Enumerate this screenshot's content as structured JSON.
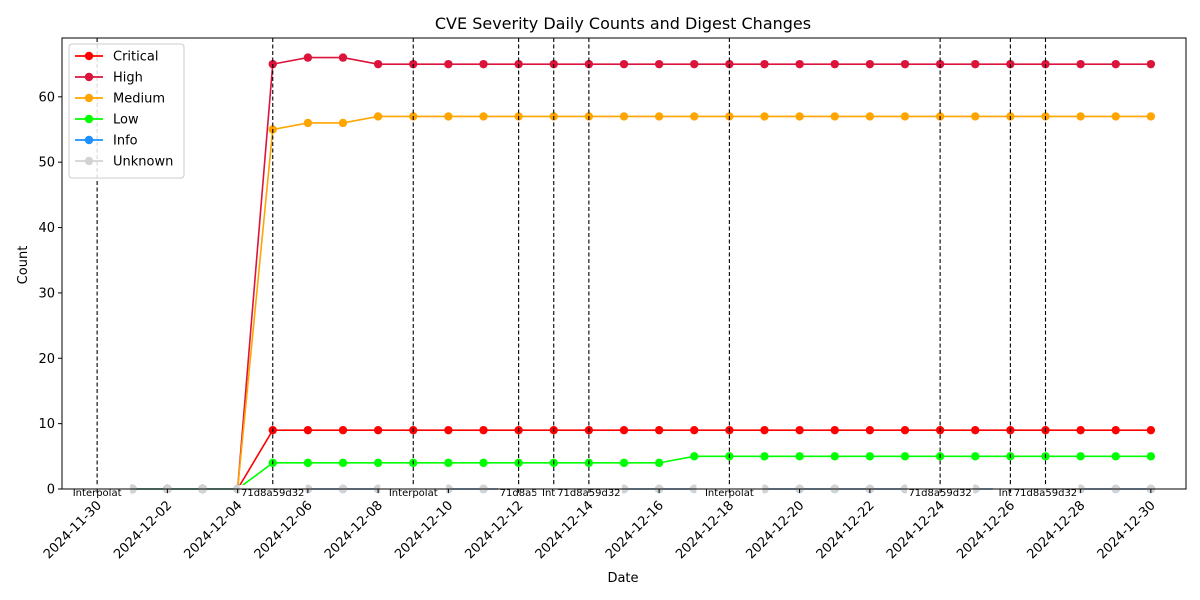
{
  "chart_data": {
    "type": "line",
    "title": "CVE Severity Daily Counts and Digest Changes",
    "xlabel": "Date",
    "ylabel": "Count",
    "ylim": [
      0,
      69
    ],
    "yticks": [
      0,
      10,
      20,
      30,
      40,
      50,
      60
    ],
    "xlim": [
      "2024-11-29",
      "2024-12-31"
    ],
    "xticks": [
      "2024-11-30",
      "2024-12-02",
      "2024-12-04",
      "2024-12-06",
      "2024-12-08",
      "2024-12-10",
      "2024-12-12",
      "2024-12-14",
      "2024-12-16",
      "2024-12-18",
      "2024-12-20",
      "2024-12-22",
      "2024-12-24",
      "2024-12-26",
      "2024-12-28",
      "2024-12-30"
    ],
    "x": [
      "2024-11-30",
      "2024-12-01",
      "2024-12-02",
      "2024-12-03",
      "2024-12-04",
      "2024-12-05",
      "2024-12-06",
      "2024-12-07",
      "2024-12-08",
      "2024-12-09",
      "2024-12-10",
      "2024-12-11",
      "2024-12-12",
      "2024-12-13",
      "2024-12-14",
      "2024-12-15",
      "2024-12-16",
      "2024-12-17",
      "2024-12-18",
      "2024-12-19",
      "2024-12-20",
      "2024-12-21",
      "2024-12-22",
      "2024-12-23",
      "2024-12-24",
      "2024-12-25",
      "2024-12-26",
      "2024-12-27",
      "2024-12-28",
      "2024-12-29",
      "2024-12-30"
    ],
    "legend_position": "top-left",
    "grid": false,
    "series": [
      {
        "name": "Critical",
        "color": "#ff0000",
        "values": [
          0,
          0,
          0,
          0,
          0,
          9,
          9,
          9,
          9,
          9,
          9,
          9,
          9,
          9,
          9,
          9,
          9,
          9,
          9,
          9,
          9,
          9,
          9,
          9,
          9,
          9,
          9,
          9,
          9,
          9,
          9
        ]
      },
      {
        "name": "High",
        "color": "#dc143c",
        "values": [
          0,
          0,
          0,
          0,
          0,
          65,
          66,
          66,
          65,
          65,
          65,
          65,
          65,
          65,
          65,
          65,
          65,
          65,
          65,
          65,
          65,
          65,
          65,
          65,
          65,
          65,
          65,
          65,
          65,
          65,
          65
        ]
      },
      {
        "name": "Medium",
        "color": "#ffa500",
        "values": [
          0,
          0,
          0,
          0,
          0,
          55,
          56,
          56,
          57,
          57,
          57,
          57,
          57,
          57,
          57,
          57,
          57,
          57,
          57,
          57,
          57,
          57,
          57,
          57,
          57,
          57,
          57,
          57,
          57,
          57,
          57
        ]
      },
      {
        "name": "Low",
        "color": "#00ff00",
        "values": [
          0,
          0,
          0,
          0,
          0,
          4,
          4,
          4,
          4,
          4,
          4,
          4,
          4,
          4,
          4,
          4,
          4,
          5,
          5,
          5,
          5,
          5,
          5,
          5,
          5,
          5,
          5,
          5,
          5,
          5,
          5
        ]
      },
      {
        "name": "Info",
        "color": "#1e90ff",
        "values": [
          0,
          0,
          0,
          0,
          0,
          0,
          0,
          0,
          0,
          0,
          0,
          0,
          0,
          0,
          0,
          0,
          0,
          0,
          0,
          0,
          0,
          0,
          0,
          0,
          0,
          0,
          0,
          0,
          0,
          0,
          0
        ]
      },
      {
        "name": "Unknown",
        "color": "#d3d3d3",
        "values": [
          0,
          0,
          0,
          0,
          0,
          0,
          0,
          0,
          0,
          0,
          0,
          0,
          0,
          0,
          0,
          0,
          0,
          0,
          0,
          0,
          0,
          0,
          0,
          0,
          0,
          0,
          0,
          0,
          0,
          0,
          0
        ]
      }
    ],
    "digest_changes": [
      {
        "date": "2024-11-30",
        "label": "Interpolat"
      },
      {
        "date": "2024-12-05",
        "label": "71d8a59d32"
      },
      {
        "date": "2024-12-09",
        "label": "Interpolat"
      },
      {
        "date": "2024-12-12",
        "label": "71d8a5"
      },
      {
        "date": "2024-12-13",
        "label": "Inter"
      },
      {
        "date": "2024-12-14",
        "label": "71d8a59d32"
      },
      {
        "date": "2024-12-18",
        "label": "Interpolat"
      },
      {
        "date": "2024-12-24",
        "label": "71d8a59d32"
      },
      {
        "date": "2024-12-26",
        "label": "Inter"
      },
      {
        "date": "2024-12-27",
        "label": "71d8a59d32"
      }
    ]
  }
}
